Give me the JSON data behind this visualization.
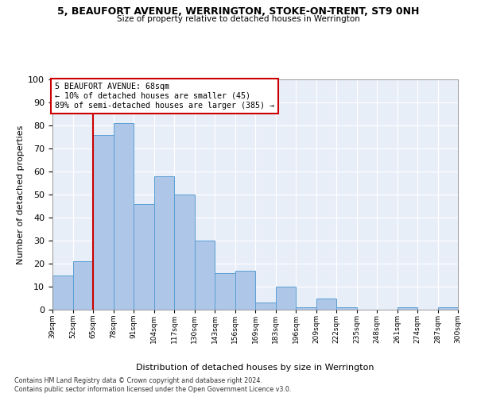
{
  "title1": "5, BEAUFORT AVENUE, WERRINGTON, STOKE-ON-TRENT, ST9 0NH",
  "title2": "Size of property relative to detached houses in Werrington",
  "xlabel": "Distribution of detached houses by size in Werrington",
  "ylabel": "Number of detached properties",
  "footnote1": "Contains HM Land Registry data © Crown copyright and database right 2024.",
  "footnote2": "Contains public sector information licensed under the Open Government Licence v3.0.",
  "annotation_line1": "5 BEAUFORT AVENUE: 68sqm",
  "annotation_line2": "← 10% of detached houses are smaller (45)",
  "annotation_line3": "89% of semi-detached houses are larger (385) →",
  "bar_values": [
    15,
    21,
    76,
    81,
    46,
    58,
    50,
    30,
    16,
    17,
    3,
    10,
    1,
    5,
    1,
    0,
    0,
    1,
    0,
    1
  ],
  "categories": [
    "39sqm",
    "52sqm",
    "65sqm",
    "78sqm",
    "91sqm",
    "104sqm",
    "117sqm",
    "130sqm",
    "143sqm",
    "156sqm",
    "169sqm",
    "183sqm",
    "196sqm",
    "209sqm",
    "222sqm",
    "235sqm",
    "248sqm",
    "261sqm",
    "274sqm",
    "287sqm",
    "300sqm"
  ],
  "bar_color": "#aec6e8",
  "bar_edge_color": "#5a9fd4",
  "vline_color": "#cc0000",
  "annotation_box_color": "#cc0000",
  "background_color": "#e8eef8",
  "grid_color": "#ffffff",
  "ylim": [
    0,
    100
  ],
  "yticks": [
    0,
    10,
    20,
    30,
    40,
    50,
    60,
    70,
    80,
    90,
    100
  ]
}
